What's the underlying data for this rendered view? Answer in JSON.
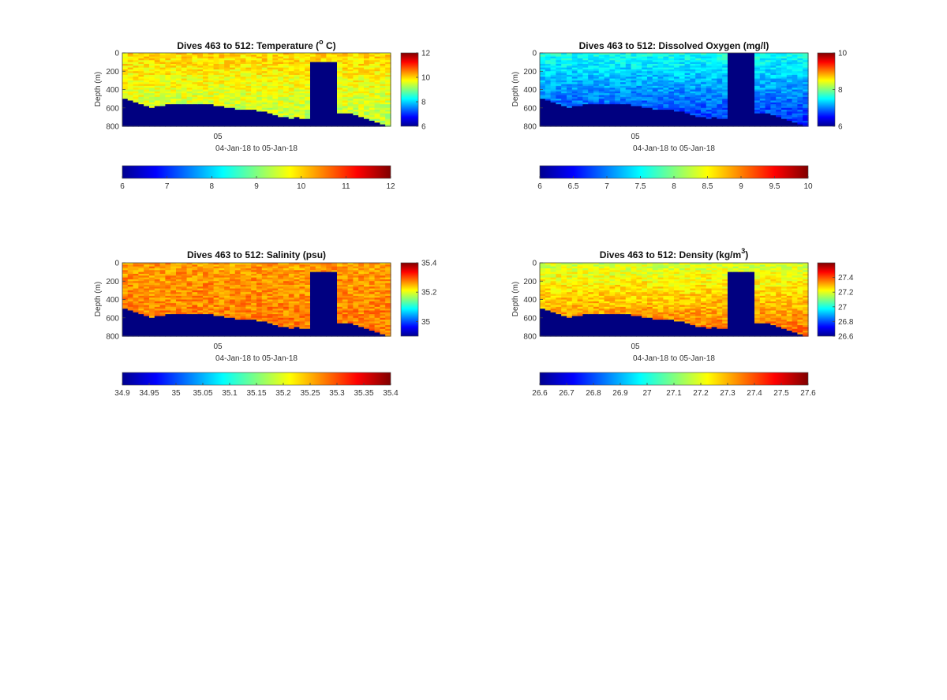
{
  "figure": {
    "background": "#ffffff"
  },
  "colormap": "jet",
  "chart_data": [
    {
      "type": "heatmap",
      "id": "temperature",
      "title_main": "Dives 463 to 512: Temperature (",
      "title_sup": "o",
      "title_end": " C)",
      "ylabel": "Depth (m)",
      "xlabel": "04-Jan-18 to 05-Jan-18",
      "x_tick_labels": [
        "05"
      ],
      "y_ticks": [
        0,
        200,
        400,
        600,
        800
      ],
      "ylim": [
        0,
        800
      ],
      "y_reversed": true,
      "clim": [
        6,
        12
      ],
      "side_colorbar_ticks": [
        "6",
        "8",
        "10",
        "12"
      ],
      "bottom_colorbar_ticks": [
        "6",
        "7",
        "8",
        "9",
        "10",
        "11",
        "12"
      ],
      "n_dives": 50,
      "max_depth_m": [
        500,
        520,
        540,
        560,
        570,
        590,
        570,
        570,
        560,
        560,
        555,
        555,
        555,
        555,
        560,
        560,
        565,
        570,
        580,
        590,
        600,
        610,
        610,
        610,
        620,
        630,
        640,
        650,
        670,
        690,
        700,
        710,
        700,
        710,
        710,
        100,
        100,
        100,
        100,
        100,
        650,
        650,
        660,
        670,
        700,
        720,
        740,
        760,
        780,
        790
      ],
      "surface_value": 10.0,
      "deep_value": 9.3,
      "anomaly_column_range": [
        35,
        39
      ],
      "anomaly_value": 6.0,
      "anomaly_column_depths": [
        100,
        200,
        100
      ]
    },
    {
      "type": "heatmap",
      "id": "dissolved-oxygen",
      "title_main": "Dives 463 to 512: Dissolved Oxygen (mg/l)",
      "title_sup": "",
      "title_end": "",
      "ylabel": "Depth (m)",
      "xlabel": "04-Jan-18 to 05-Jan-18",
      "x_tick_labels": [
        "05"
      ],
      "y_ticks": [
        0,
        200,
        400,
        600,
        800
      ],
      "ylim": [
        0,
        800
      ],
      "y_reversed": true,
      "clim": [
        6,
        10
      ],
      "side_colorbar_ticks": [
        "6",
        "8",
        "10"
      ],
      "bottom_colorbar_ticks": [
        "6",
        "6.5",
        "7",
        "7.5",
        "8",
        "8.5",
        "9",
        "9.5",
        "10"
      ],
      "n_dives": 50,
      "max_depth_m": [
        500,
        520,
        540,
        560,
        570,
        590,
        570,
        570,
        560,
        560,
        555,
        555,
        555,
        555,
        560,
        560,
        565,
        570,
        580,
        590,
        600,
        610,
        610,
        610,
        620,
        630,
        640,
        650,
        670,
        690,
        700,
        710,
        700,
        710,
        710,
        0,
        0,
        0,
        0,
        0,
        650,
        650,
        660,
        670,
        700,
        720,
        740,
        760,
        780,
        790
      ],
      "surface_value": 7.6,
      "deep_value": 6.6,
      "anomaly_column_range": [
        35,
        39
      ],
      "anomaly_value": 6.0,
      "anomaly_column_depths": [
        0,
        0,
        0
      ]
    },
    {
      "type": "heatmap",
      "id": "salinity",
      "title_main": "Dives 463 to 512: Salinity (psu)",
      "title_sup": "",
      "title_end": "",
      "ylabel": "Depth (m)",
      "xlabel": "04-Jan-18 to 05-Jan-18",
      "x_tick_labels": [
        "05"
      ],
      "y_ticks": [
        0,
        200,
        400,
        600,
        800
      ],
      "ylim": [
        0,
        800
      ],
      "y_reversed": true,
      "clim": [
        34.9,
        35.4
      ],
      "side_colorbar_ticks": [
        "35",
        "35.2",
        "35.4"
      ],
      "bottom_colorbar_ticks": [
        "34.9",
        "34.95",
        "35",
        "35.05",
        "35.1",
        "35.15",
        "35.2",
        "35.25",
        "35.3",
        "35.35",
        "35.4"
      ],
      "n_dives": 50,
      "max_depth_m": [
        500,
        520,
        540,
        560,
        570,
        590,
        570,
        570,
        560,
        560,
        555,
        555,
        555,
        555,
        560,
        560,
        565,
        570,
        580,
        590,
        600,
        610,
        610,
        610,
        620,
        630,
        640,
        650,
        670,
        690,
        700,
        710,
        700,
        710,
        710,
        100,
        100,
        100,
        100,
        100,
        650,
        650,
        660,
        670,
        700,
        720,
        740,
        760,
        780,
        790
      ],
      "surface_value": 35.26,
      "deep_value": 35.28,
      "anomaly_column_range": [
        35,
        39
      ],
      "anomaly_value": 34.9,
      "anomaly_column_depths": [
        100,
        200,
        100
      ]
    },
    {
      "type": "heatmap",
      "id": "density",
      "title_main": "Dives 463 to 512: Density (kg/m",
      "title_sup": "3",
      "title_end": ")",
      "ylabel": "Depth (m)",
      "xlabel": "04-Jan-18 to 05-Jan-18",
      "x_tick_labels": [
        "05"
      ],
      "y_ticks": [
        0,
        200,
        400,
        600,
        800
      ],
      "ylim": [
        0,
        800
      ],
      "y_reversed": true,
      "clim": [
        26.6,
        27.6
      ],
      "side_colorbar_ticks": [
        "26.6",
        "26.8",
        "27",
        "27.2",
        "27.4"
      ],
      "bottom_colorbar_ticks": [
        "26.6",
        "26.7",
        "26.8",
        "26.9",
        "27",
        "27.1",
        "27.2",
        "27.3",
        "27.4",
        "27.5",
        "27.6"
      ],
      "n_dives": 50,
      "max_depth_m": [
        500,
        520,
        540,
        560,
        570,
        590,
        570,
        570,
        560,
        560,
        555,
        555,
        555,
        555,
        560,
        560,
        565,
        570,
        580,
        590,
        600,
        610,
        610,
        610,
        620,
        630,
        640,
        650,
        670,
        690,
        700,
        710,
        700,
        710,
        710,
        100,
        100,
        100,
        100,
        100,
        650,
        650,
        660,
        670,
        700,
        720,
        740,
        760,
        780,
        790
      ],
      "surface_value": 27.18,
      "deep_value": 27.38,
      "anomaly_column_range": [
        35,
        39
      ],
      "anomaly_value": 26.6,
      "anomaly_column_depths": [
        100,
        200,
        100
      ]
    }
  ]
}
